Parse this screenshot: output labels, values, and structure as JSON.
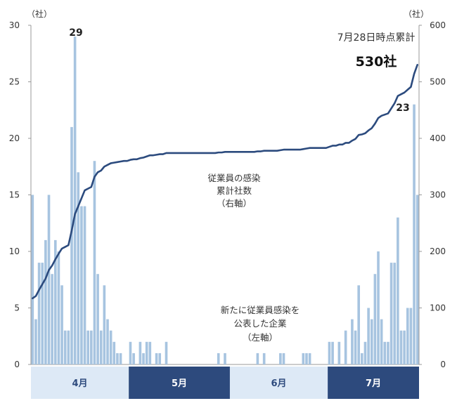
{
  "chart_data": {
    "type": "bar+line",
    "left_axis": {
      "unit_label": "（社）",
      "ylim": [
        0,
        30
      ],
      "ticks": [
        0,
        5,
        10,
        15,
        20,
        25,
        30
      ]
    },
    "right_axis": {
      "unit_label": "（社）",
      "ylim": [
        0,
        600
      ],
      "ticks": [
        0,
        100,
        200,
        300,
        400,
        500,
        600
      ]
    },
    "months": [
      {
        "label": "4月",
        "days": 30,
        "style": "light"
      },
      {
        "label": "5月",
        "days": 31,
        "style": "dark"
      },
      {
        "label": "6月",
        "days": 30,
        "style": "light"
      },
      {
        "label": "7月",
        "days": 28,
        "style": "dark"
      }
    ],
    "bars": {
      "series_label": [
        "新たに従業員感染を",
        "公表した企業",
        "（左軸）"
      ],
      "axis": "left",
      "color": "#a7c4e0",
      "values": [
        15,
        4,
        9,
        9,
        11,
        15,
        8,
        11,
        10,
        7,
        3,
        3,
        21,
        29,
        17,
        14,
        14,
        3,
        3,
        18,
        8,
        3,
        7,
        4,
        3,
        2,
        1,
        1,
        0,
        0,
        2,
        1,
        0,
        2,
        1,
        2,
        2,
        0,
        1,
        1,
        0,
        2,
        0,
        0,
        0,
        0,
        0,
        0,
        0,
        0,
        0,
        0,
        0,
        0,
        0,
        0,
        0,
        1,
        0,
        1,
        0,
        0,
        0,
        0,
        0,
        0,
        0,
        0,
        0,
        1,
        0,
        1,
        0,
        0,
        0,
        0,
        1,
        1,
        0,
        0,
        0,
        0,
        0,
        1,
        1,
        1,
        0,
        0,
        0,
        0,
        0,
        2,
        2,
        0,
        2,
        0,
        3,
        0,
        4,
        3,
        7,
        1,
        2,
        5,
        4,
        8,
        10,
        4,
        2,
        2,
        9,
        9,
        13,
        3,
        3,
        5,
        5,
        23,
        15
      ]
    },
    "line": {
      "series_label": [
        "従業員の感染",
        "累計社数",
        "（右軸）"
      ],
      "axis": "right",
      "color": "#2c4b7e",
      "values": [
        117,
        121,
        132,
        142,
        152,
        167,
        175,
        186,
        196,
        205,
        208,
        211,
        237,
        266,
        280,
        294,
        308,
        311,
        314,
        332,
        340,
        343,
        350,
        353,
        356,
        357,
        358,
        359,
        360,
        360,
        362,
        363,
        363,
        365,
        366,
        368,
        370,
        370,
        371,
        372,
        372,
        374,
        374,
        374,
        374,
        374,
        374,
        374,
        374,
        374,
        374,
        374,
        374,
        374,
        374,
        374,
        374,
        375,
        375,
        376,
        376,
        376,
        376,
        376,
        376,
        376,
        376,
        376,
        376,
        377,
        377,
        378,
        378,
        378,
        378,
        378,
        379,
        380,
        380,
        380,
        380,
        380,
        380,
        381,
        382,
        383,
        383,
        383,
        383,
        383,
        383,
        385,
        387,
        387,
        389,
        389,
        392,
        392,
        396,
        399,
        406,
        407,
        409,
        414,
        418,
        426,
        436,
        440,
        442,
        444,
        453,
        462,
        475,
        478,
        481,
        486,
        491,
        514,
        530
      ]
    },
    "annotations": {
      "peak_label": "29",
      "last_bar_label": "23",
      "cumulative_note": "7月28日時点累計",
      "cumulative_value": "530社"
    }
  }
}
